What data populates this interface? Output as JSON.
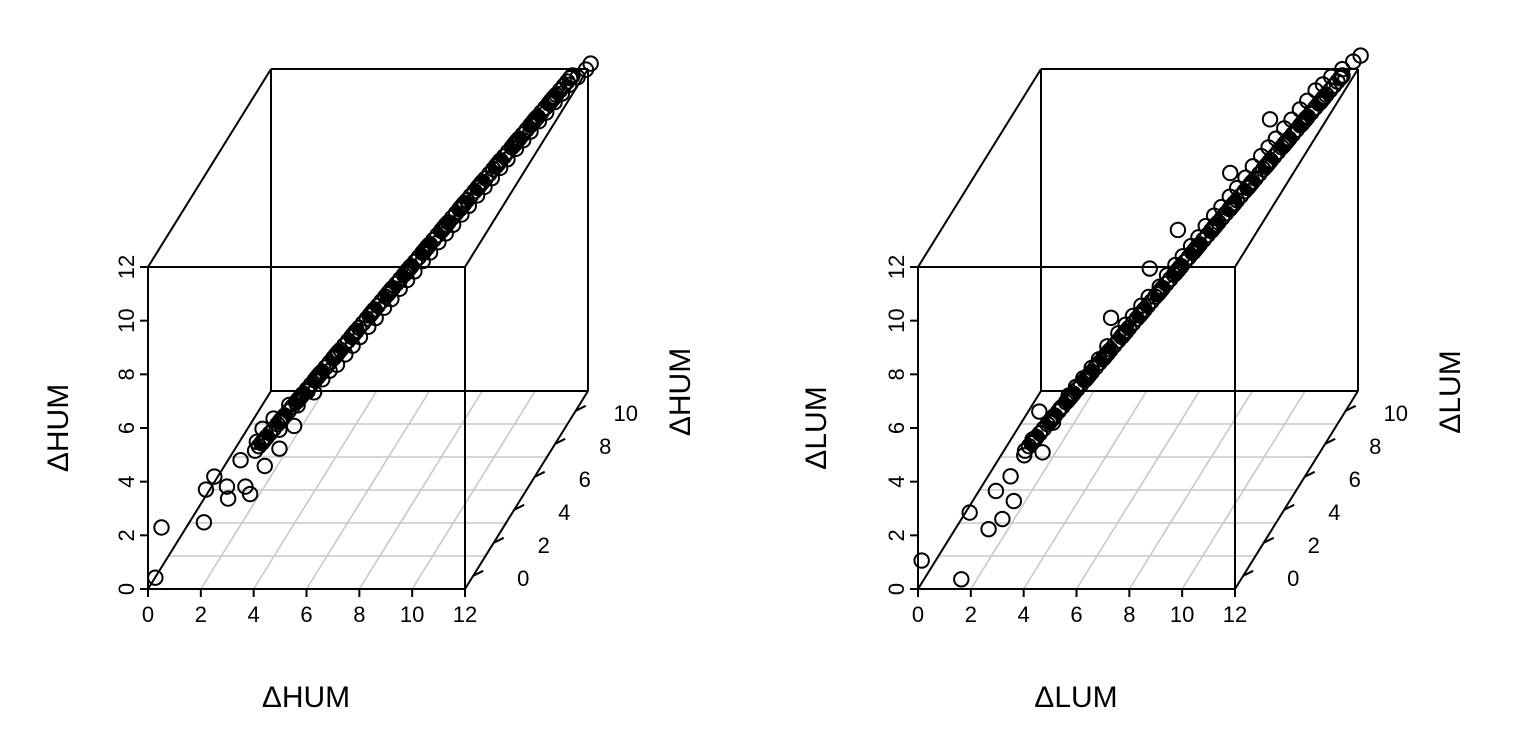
{
  "chart_data": [
    {
      "type": "scatter",
      "title": "",
      "xlabel": "ΔHUM",
      "ylabel": "ΔHUM",
      "zlabel": "ΔHUM",
      "xlim": [
        0,
        12
      ],
      "ylim": [
        0,
        12
      ],
      "zlim": [
        0,
        12
      ],
      "x_ticks": [
        "0",
        "2",
        "4",
        "6",
        "8",
        "10",
        "12"
      ],
      "y_ticks": [
        "0",
        "2",
        "4",
        "6",
        "8",
        "10"
      ],
      "z_ticks": [
        "0",
        "2",
        "4",
        "6",
        "8",
        "10",
        "12"
      ],
      "grid": "floor",
      "points": [
        [
          0.2,
          0.2,
          0.3
        ],
        [
          0.2,
          0.8,
          1.8
        ],
        [
          2.0,
          0.3,
          2.3
        ],
        [
          2.0,
          0.5,
          3.4
        ],
        [
          2.2,
          0.8,
          3.7
        ],
        [
          2.6,
          1.0,
          3.2
        ],
        [
          2.8,
          0.6,
          3.0
        ],
        [
          3.0,
          1.3,
          4.0
        ],
        [
          3.3,
          1.0,
          3.2
        ],
        [
          3.4,
          1.2,
          2.8
        ],
        [
          3.5,
          1.6,
          4.5
        ],
        [
          3.6,
          1.9,
          4.8
        ],
        [
          3.8,
          1.6,
          3.6
        ],
        [
          3.9,
          2.2,
          5.0
        ],
        [
          4.0,
          2.5,
          4.4
        ],
        [
          4.2,
          2.0,
          4.0
        ],
        [
          4.3,
          2.7,
          5.2
        ],
        [
          4.5,
          3.0,
          5.0
        ],
        [
          4.6,
          2.4,
          4.6
        ],
        [
          4.8,
          3.2,
          5.4
        ],
        [
          5.0,
          3.3,
          5.3
        ],
        [
          5.2,
          3.6,
          5.6
        ],
        [
          5.4,
          3.8,
          5.8
        ],
        [
          5.6,
          4.0,
          5.9
        ],
        [
          5.8,
          4.3,
          6.1
        ],
        [
          6.0,
          4.5,
          6.3
        ],
        [
          6.2,
          4.7,
          6.5
        ],
        [
          6.4,
          5.0,
          6.7
        ],
        [
          6.6,
          5.2,
          6.9
        ],
        [
          6.8,
          5.5,
          7.1
        ],
        [
          7.0,
          5.7,
          7.3
        ],
        [
          7.2,
          6.0,
          7.5
        ],
        [
          7.4,
          6.2,
          7.7
        ],
        [
          7.6,
          6.4,
          7.9
        ],
        [
          7.8,
          6.7,
          8.1
        ],
        [
          8.0,
          6.9,
          8.3
        ],
        [
          8.2,
          7.2,
          8.5
        ],
        [
          8.4,
          7.4,
          8.7
        ],
        [
          8.6,
          7.6,
          8.9
        ],
        [
          8.8,
          7.9,
          9.1
        ],
        [
          9.0,
          8.1,
          9.3
        ],
        [
          9.2,
          8.4,
          9.5
        ],
        [
          9.4,
          8.6,
          9.7
        ],
        [
          9.6,
          8.8,
          9.9
        ],
        [
          9.8,
          9.1,
          10.1
        ],
        [
          10.0,
          9.3,
          10.3
        ],
        [
          10.2,
          9.6,
          10.5
        ],
        [
          10.4,
          9.8,
          10.7
        ],
        [
          10.6,
          10.0,
          10.9
        ],
        [
          10.8,
          10.3,
          11.1
        ],
        [
          11.0,
          10.5,
          11.3
        ],
        [
          11.2,
          10.8,
          11.5
        ],
        [
          11.4,
          11.0,
          11.7
        ],
        [
          11.6,
          11.2,
          11.9
        ],
        [
          11.8,
          11.5,
          12.0
        ],
        [
          12.0,
          11.8,
          12.1
        ],
        [
          12.1,
          12.0,
          12.2
        ]
      ]
    },
    {
      "type": "scatter",
      "title": "",
      "xlabel": "ΔLUM",
      "ylabel": "ΔLUM",
      "zlabel": "ΔLUM",
      "xlim": [
        0,
        12
      ],
      "ylim": [
        0,
        12
      ],
      "zlim": [
        0,
        12
      ],
      "x_ticks": [
        "0",
        "2",
        "4",
        "6",
        "8",
        "10",
        "12"
      ],
      "y_ticks": [
        "0",
        "2",
        "4",
        "6",
        "8",
        "10"
      ],
      "z_ticks": [
        "0",
        "2",
        "4",
        "6",
        "8",
        "10",
        "12"
      ],
      "grid": "floor",
      "points": [
        [
          0.1,
          0.1,
          1.0
        ],
        [
          1.6,
          0.1,
          0.3
        ],
        [
          1.8,
          0.4,
          2.6
        ],
        [
          2.4,
          0.7,
          1.8
        ],
        [
          2.6,
          0.9,
          3.1
        ],
        [
          3.0,
          0.5,
          2.3
        ],
        [
          3.0,
          1.3,
          3.4
        ],
        [
          3.2,
          1.1,
          2.6
        ],
        [
          3.4,
          1.6,
          4.0
        ],
        [
          3.6,
          1.9,
          4.4
        ],
        [
          3.7,
          2.3,
          5.2
        ],
        [
          3.9,
          2.1,
          3.8
        ],
        [
          4.1,
          2.6,
          4.6
        ],
        [
          4.3,
          2.8,
          5.0
        ],
        [
          4.5,
          3.1,
          5.3
        ],
        [
          4.7,
          3.3,
          5.5
        ],
        [
          4.9,
          3.5,
          5.7
        ],
        [
          5.1,
          3.8,
          5.9
        ],
        [
          5.3,
          4.0,
          6.1
        ],
        [
          5.5,
          4.3,
          6.4
        ],
        [
          5.8,
          4.6,
          6.7
        ],
        [
          6.0,
          4.8,
          6.9
        ],
        [
          6.2,
          5.0,
          7.1
        ],
        [
          6.4,
          5.3,
          7.3
        ],
        [
          6.6,
          5.5,
          7.5
        ],
        [
          6.9,
          5.8,
          7.7
        ],
        [
          7.1,
          6.0,
          8.0
        ],
        [
          7.3,
          6.3,
          8.2
        ],
        [
          7.5,
          6.5,
          8.4
        ],
        [
          7.7,
          6.8,
          8.6
        ],
        [
          7.9,
          7.0,
          8.8
        ],
        [
          8.1,
          7.2,
          9.1
        ],
        [
          8.3,
          7.5,
          9.3
        ],
        [
          8.5,
          7.7,
          9.5
        ],
        [
          8.7,
          8.0,
          9.7
        ],
        [
          8.9,
          8.2,
          9.9
        ],
        [
          9.1,
          8.5,
          10.1
        ],
        [
          9.3,
          8.7,
          10.4
        ],
        [
          9.5,
          9.0,
          10.6
        ],
        [
          9.7,
          9.2,
          10.8
        ],
        [
          9.9,
          9.4,
          11.0
        ],
        [
          10.1,
          9.7,
          11.2
        ],
        [
          10.3,
          9.9,
          11.4
        ],
        [
          10.5,
          10.2,
          11.6
        ],
        [
          10.7,
          10.4,
          11.8
        ],
        [
          10.9,
          10.7,
          12.0
        ],
        [
          11.1,
          10.9,
          12.1
        ],
        [
          11.3,
          11.2,
          12.2
        ],
        [
          11.6,
          11.5,
          12.3
        ],
        [
          11.9,
          11.8,
          12.4
        ],
        [
          12.1,
          12.0,
          12.5
        ],
        [
          7.2,
          6.8,
          9.2
        ],
        [
          8.6,
          8.3,
          10.4
        ],
        [
          9.6,
          9.6,
          11.6
        ],
        [
          6.6,
          5.6,
          8.5
        ],
        [
          5.6,
          4.4,
          7.4
        ]
      ]
    }
  ]
}
